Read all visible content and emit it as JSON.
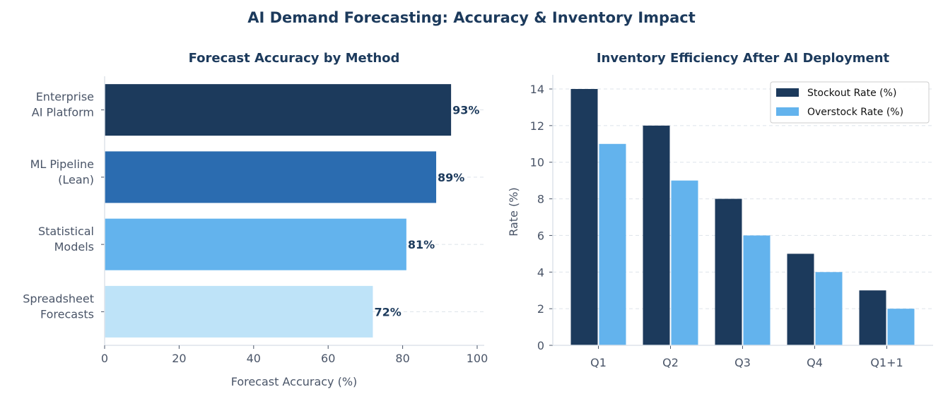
{
  "figure": {
    "title": "AI Demand Forecasting: Accuracy & Inventory Impact"
  },
  "chart_data": [
    {
      "type": "bar",
      "orientation": "horizontal",
      "title": "Forecast Accuracy by Method",
      "xlabel": "Forecast Accuracy (%)",
      "ylabel": "",
      "xlim": [
        0,
        100
      ],
      "xticks": [
        0,
        20,
        40,
        60,
        80,
        100
      ],
      "categories": [
        [
          "Enterprise",
          "AI Platform"
        ],
        [
          "ML Pipeline",
          "(Lean)"
        ],
        [
          "Statistical",
          "Models"
        ],
        [
          "Spreadsheet",
          "Forecasts"
        ]
      ],
      "values": [
        93,
        89,
        81,
        72
      ],
      "data_labels": [
        "93%",
        "89%",
        "81%",
        "72%"
      ],
      "colors": [
        "#1c3a5c",
        "#2b6cb0",
        "#63b3ed",
        "#bee3f8"
      ],
      "grid": "x-dashed"
    },
    {
      "type": "bar",
      "orientation": "vertical",
      "title": "Inventory Efficiency After AI Deployment",
      "xlabel": "",
      "ylabel": "Rate (%)",
      "ylim": [
        0,
        14
      ],
      "yticks": [
        0,
        2,
        4,
        6,
        8,
        10,
        12,
        14
      ],
      "categories": [
        "Q1",
        "Q2",
        "Q3",
        "Q4",
        "Q1+1"
      ],
      "series": [
        {
          "name": "Stockout Rate (%)",
          "values": [
            14,
            12,
            8,
            5,
            3
          ],
          "color": "#1c3a5c"
        },
        {
          "name": "Overstock Rate (%)",
          "values": [
            11,
            9,
            6,
            4,
            2
          ],
          "color": "#63b3ed"
        }
      ],
      "legend": "top-right",
      "grid": "y-dashed"
    }
  ]
}
